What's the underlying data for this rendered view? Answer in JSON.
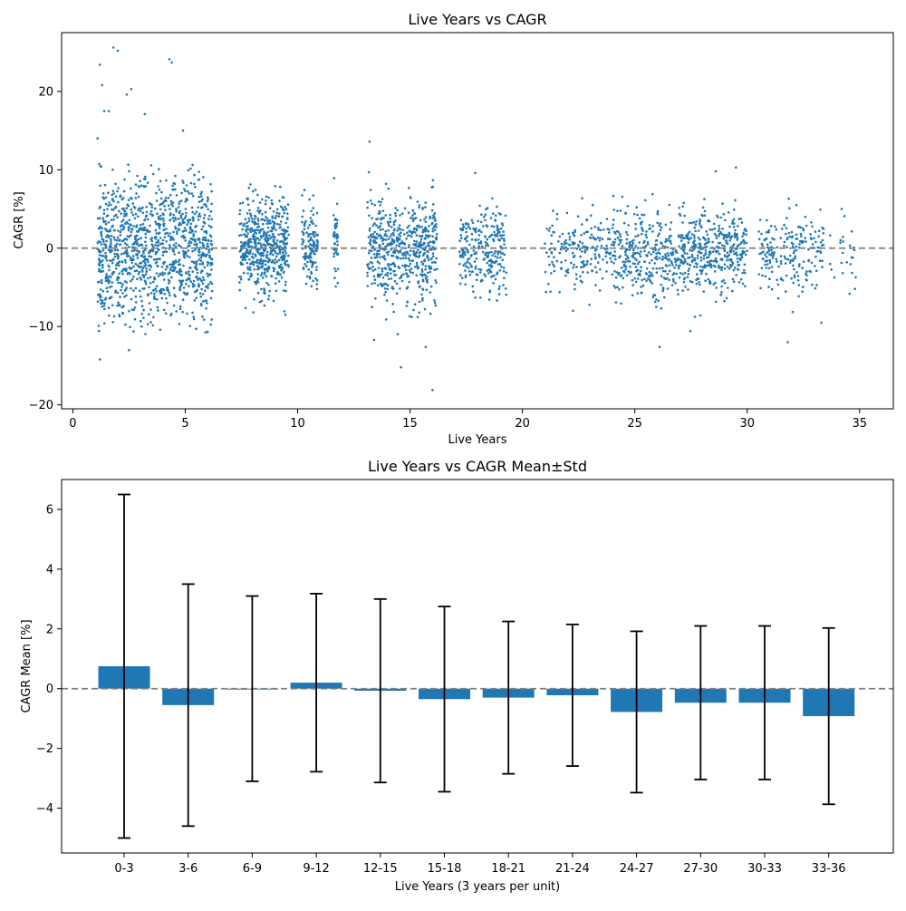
{
  "chart_data": [
    {
      "type": "scatter",
      "title": "Live Years vs CAGR",
      "xlabel": "Live Years",
      "ylabel": "CAGR [%]",
      "xlim": [
        -0.5,
        36.5
      ],
      "ylim": [
        -20.5,
        27.5
      ],
      "xticks": [
        0,
        5,
        10,
        15,
        20,
        25,
        30,
        35
      ],
      "yticks": [
        -20,
        -10,
        0,
        10,
        20
      ],
      "reference_line": {
        "y": 0,
        "style": "dashed",
        "color": "#808080"
      },
      "point_color": "#1f77b4",
      "clusters": [
        {
          "x_range": [
            1.1,
            6.2
          ],
          "y_mean": 0.2,
          "y_std": 4.6,
          "n": 1150
        },
        {
          "x_range": [
            7.4,
            9.6
          ],
          "y_mean": 0.1,
          "y_std": 3.0,
          "n": 520
        },
        {
          "x_range": [
            10.2,
            10.9
          ],
          "y_mean": 0.2,
          "y_std": 2.8,
          "n": 130
        },
        {
          "x_range": [
            11.6,
            11.8
          ],
          "y_mean": 0.3,
          "y_std": 2.6,
          "n": 45
        },
        {
          "x_range": [
            13.1,
            16.2
          ],
          "y_mean": -0.1,
          "y_std": 3.2,
          "n": 560
        },
        {
          "x_range": [
            17.2,
            19.3
          ],
          "y_mean": -0.3,
          "y_std": 2.6,
          "n": 260
        },
        {
          "x_range": [
            21.0,
            24.0
          ],
          "y_mean": -0.2,
          "y_std": 2.4,
          "n": 190
        },
        {
          "x_range": [
            24.0,
            26.8
          ],
          "y_mean": -0.8,
          "y_std": 2.7,
          "n": 300
        },
        {
          "x_range": [
            26.8,
            30.0
          ],
          "y_mean": -0.5,
          "y_std": 2.6,
          "n": 420
        },
        {
          "x_range": [
            30.5,
            33.4
          ],
          "y_mean": -0.5,
          "y_std": 2.6,
          "n": 200
        },
        {
          "x_range": [
            33.6,
            34.9
          ],
          "y_mean": -0.9,
          "y_std": 2.9,
          "n": 25
        }
      ],
      "outliers": [
        [
          1.8,
          25.6
        ],
        [
          2.0,
          25.2
        ],
        [
          1.2,
          23.4
        ],
        [
          4.3,
          24.1
        ],
        [
          4.4,
          23.7
        ],
        [
          1.3,
          20.8
        ],
        [
          2.6,
          20.3
        ],
        [
          2.4,
          19.6
        ],
        [
          3.2,
          17.1
        ],
        [
          1.4,
          17.5
        ],
        [
          1.6,
          17.5
        ],
        [
          1.1,
          14.0
        ],
        [
          13.2,
          13.6
        ],
        [
          1.2,
          -14.2
        ],
        [
          2.5,
          -13.0
        ],
        [
          15.7,
          -12.6
        ],
        [
          13.4,
          -11.7
        ],
        [
          14.6,
          -15.2
        ],
        [
          16.0,
          -18.1
        ],
        [
          26.1,
          -12.6
        ],
        [
          31.8,
          -12.0
        ],
        [
          33.3,
          -9.5
        ],
        [
          29.5,
          10.3
        ],
        [
          17.9,
          9.6
        ],
        [
          28.6,
          9.8
        ],
        [
          4.9,
          15.0
        ]
      ]
    },
    {
      "type": "bar",
      "title": "Live Years vs CAGR Mean±Std",
      "xlabel": "Live Years (3 years per unit)",
      "ylabel": "CAGR Mean [%]",
      "ylim": [
        -5.5,
        7.0
      ],
      "yticks": [
        -4,
        -2,
        0,
        2,
        4,
        6
      ],
      "reference_line": {
        "y": 0,
        "style": "dashed",
        "color": "#808080"
      },
      "bar_color": "#1f77b4",
      "error_color": "#000000",
      "categories": [
        "0-3",
        "3-6",
        "6-9",
        "9-12",
        "12-15",
        "15-18",
        "18-21",
        "21-24",
        "24-27",
        "27-30",
        "30-33",
        "33-36"
      ],
      "values": [
        0.75,
        -0.55,
        0.0,
        0.2,
        -0.07,
        -0.35,
        -0.3,
        -0.22,
        -0.78,
        -0.47,
        -0.47,
        -0.92
      ],
      "std": [
        5.75,
        4.05,
        3.1,
        2.98,
        3.07,
        3.1,
        2.55,
        2.37,
        2.7,
        2.57,
        2.57,
        2.95
      ]
    }
  ]
}
